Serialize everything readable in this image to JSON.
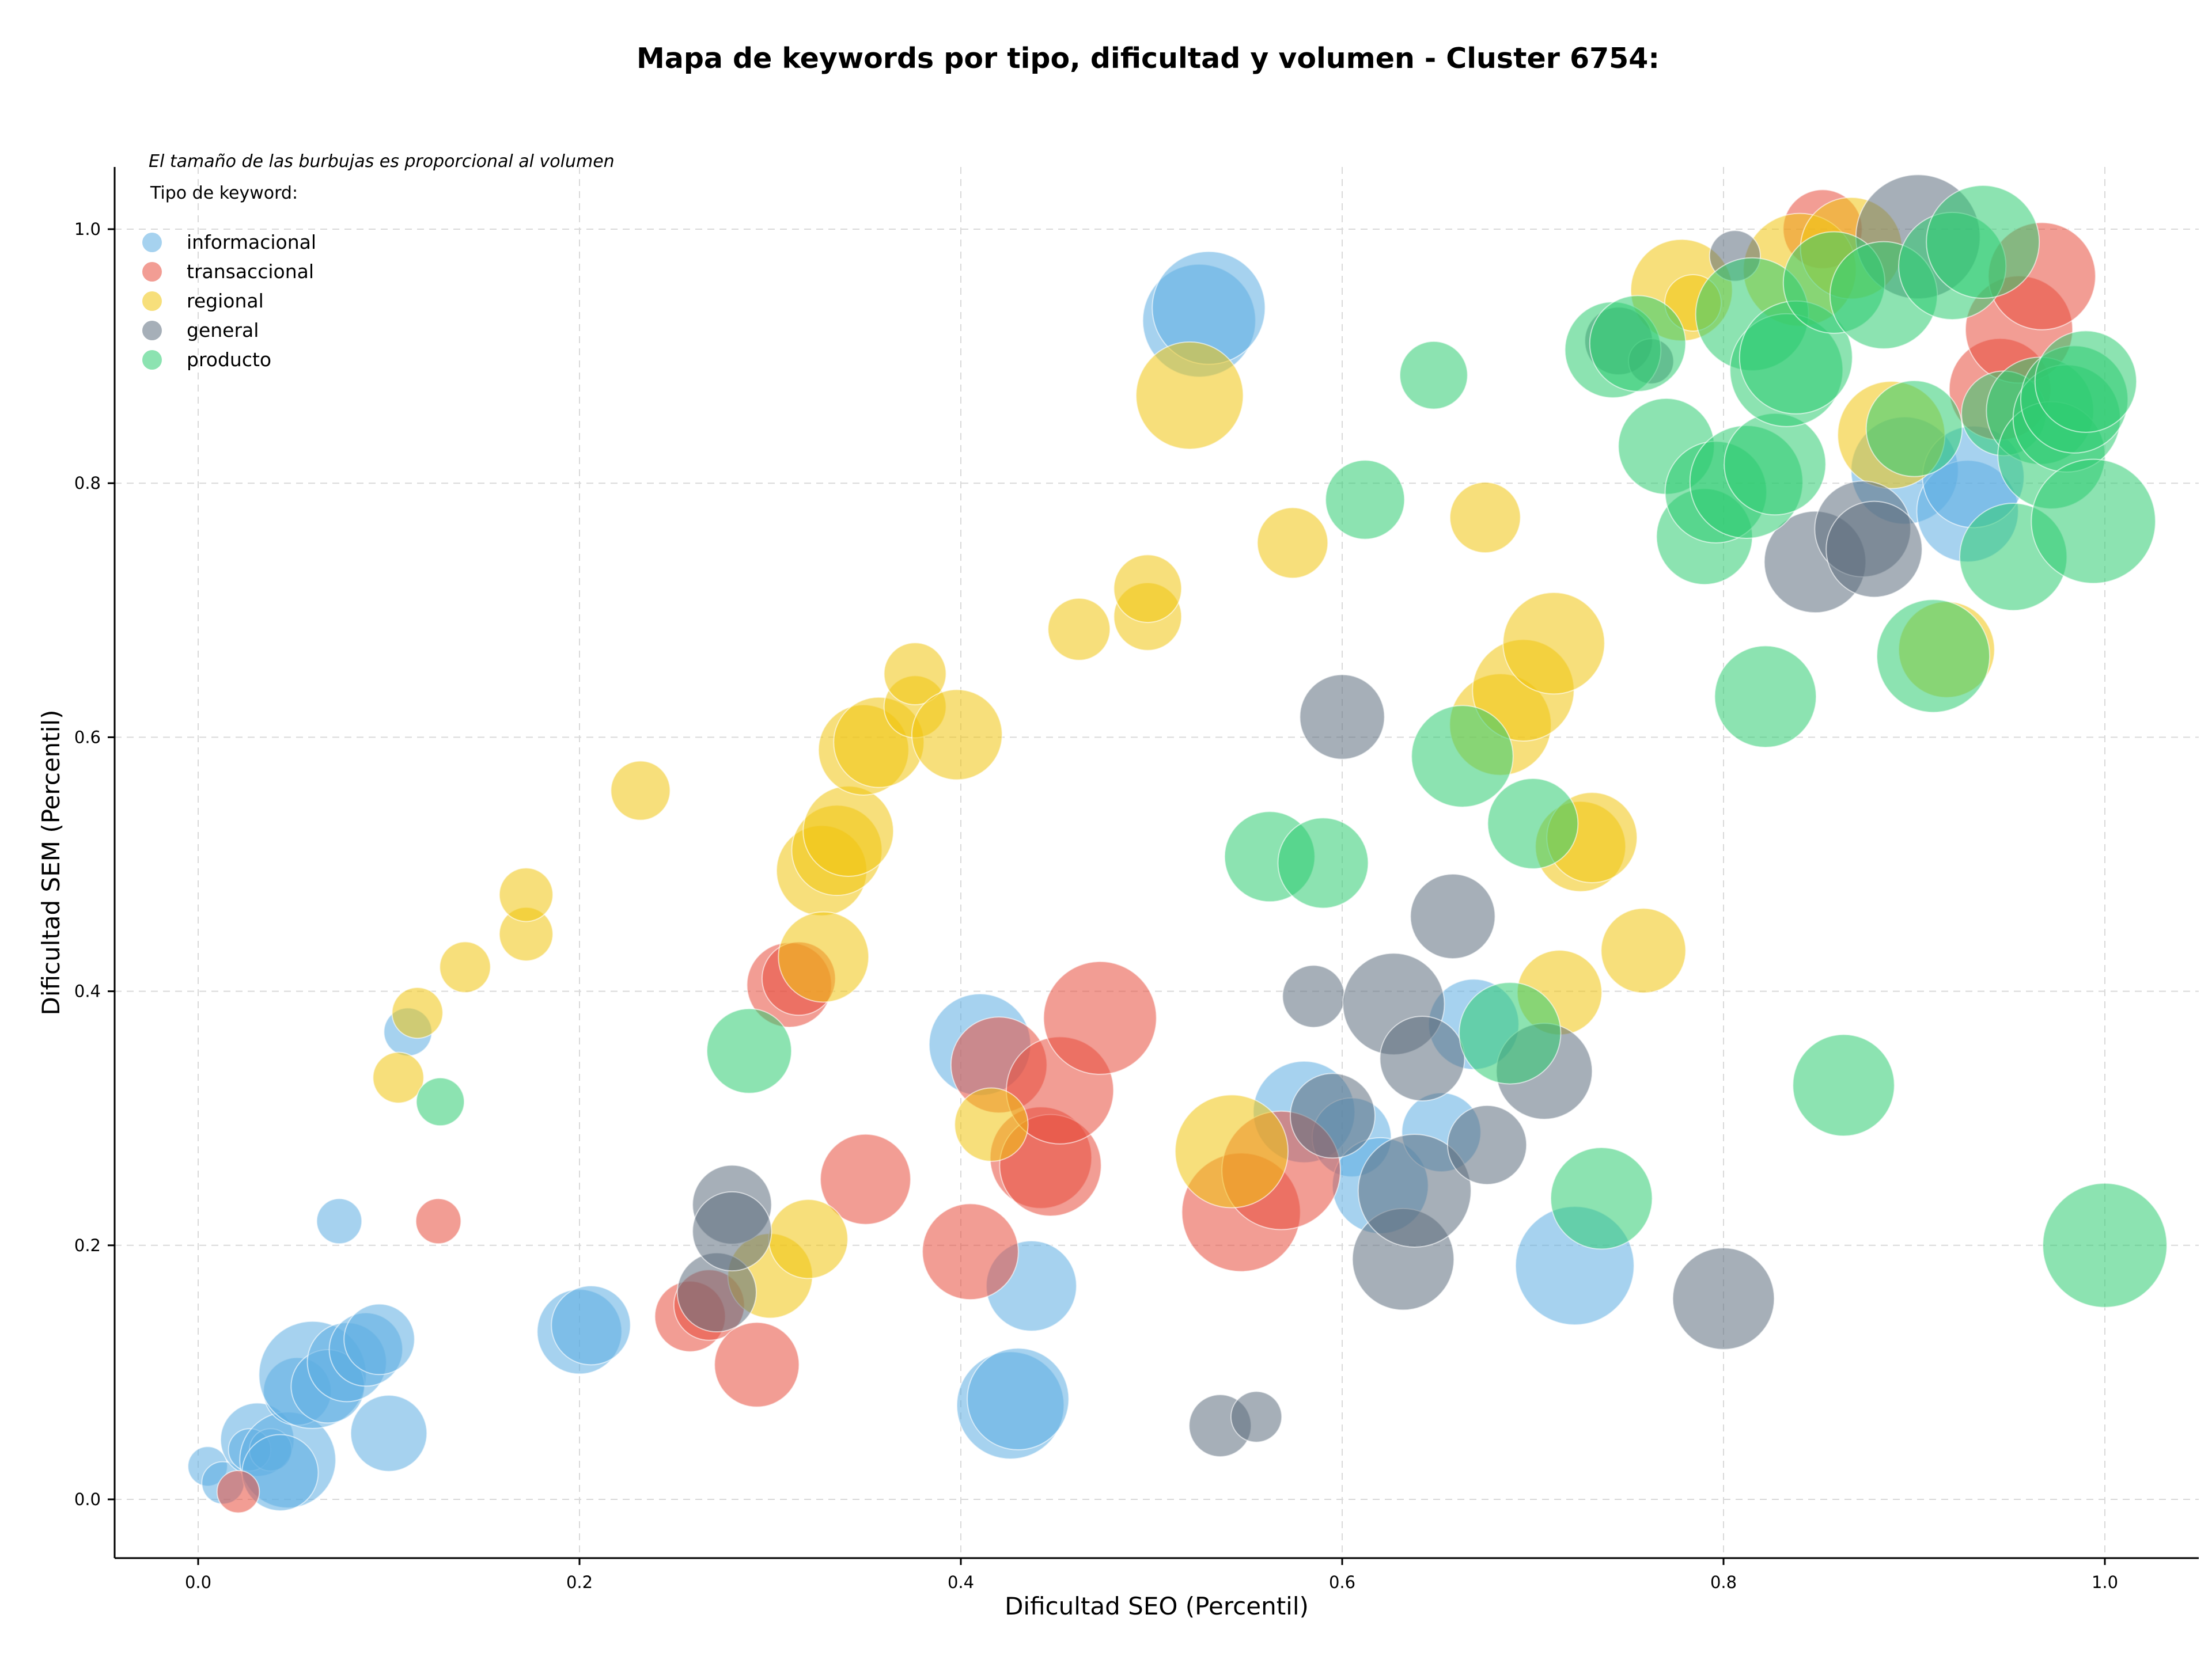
{
  "chart_data": {
    "type": "scatter",
    "title": "Mapa de keywords por tipo, dificultad y volumen - Cluster 6754:",
    "xlabel": "Dificultad SEO (Percentil)",
    "ylabel": "Dificultad SEM (Percentil)",
    "note": "El tamaño de las burbujas es proporcional al volumen",
    "legend_title": "Tipo de keyword:",
    "legend_position": "top-left",
    "xlim": [
      -0.045,
      1.05
    ],
    "ylim": [
      -0.045,
      1.05
    ],
    "x_ticks": [
      0.0,
      0.2,
      0.4,
      0.6,
      0.8,
      1.0
    ],
    "y_ticks": [
      0.0,
      0.2,
      0.4,
      0.6,
      0.8,
      1.0
    ],
    "x_tick_labels": [
      "0.0",
      "0.2",
      "0.4",
      "0.6",
      "0.8",
      "1.0"
    ],
    "y_tick_labels": [
      "0.0",
      "0.2",
      "0.4",
      "0.6",
      "0.8",
      "1.0"
    ],
    "grid": true,
    "series": [
      {
        "name": "informacional",
        "color": "#5dade2",
        "points": [
          [
            0.005,
            0.026,
            14
          ],
          [
            0.013,
            0.013,
            15
          ],
          [
            0.031,
            0.047,
            26
          ],
          [
            0.027,
            0.039,
            15
          ],
          [
            0.038,
            0.039,
            15
          ],
          [
            0.047,
            0.031,
            34
          ],
          [
            0.043,
            0.021,
            27
          ],
          [
            0.052,
            0.085,
            24
          ],
          [
            0.06,
            0.098,
            38
          ],
          [
            0.068,
            0.089,
            26
          ],
          [
            0.078,
            0.108,
            28
          ],
          [
            0.088,
            0.118,
            26
          ],
          [
            0.095,
            0.126,
            25
          ],
          [
            0.1,
            0.052,
            27
          ],
          [
            0.074,
            0.219,
            16
          ],
          [
            0.11,
            0.368,
            17
          ],
          [
            0.2,
            0.132,
            30
          ],
          [
            0.206,
            0.137,
            28
          ],
          [
            0.41,
            0.358,
            36
          ],
          [
            0.437,
            0.168,
            32
          ],
          [
            0.426,
            0.074,
            38
          ],
          [
            0.43,
            0.079,
            36
          ],
          [
            0.525,
            0.928,
            40
          ],
          [
            0.53,
            0.938,
            40
          ],
          [
            0.58,
            0.305,
            36
          ],
          [
            0.605,
            0.285,
            28
          ],
          [
            0.62,
            0.247,
            34
          ],
          [
            0.652,
            0.289,
            28
          ],
          [
            0.669,
            0.374,
            32
          ],
          [
            0.722,
            0.184,
            42
          ],
          [
            0.895,
            0.81,
            38
          ],
          [
            0.928,
            0.778,
            36
          ],
          [
            0.931,
            0.805,
            36
          ]
        ]
      },
      {
        "name": "transaccional",
        "color": "#e74c3c",
        "points": [
          [
            0.021,
            0.006,
            15
          ],
          [
            0.126,
            0.219,
            16
          ],
          [
            0.258,
            0.144,
            25
          ],
          [
            0.268,
            0.153,
            25
          ],
          [
            0.293,
            0.106,
            30
          ],
          [
            0.31,
            0.405,
            30
          ],
          [
            0.315,
            0.41,
            26
          ],
          [
            0.35,
            0.252,
            32
          ],
          [
            0.405,
            0.195,
            34
          ],
          [
            0.42,
            0.342,
            34
          ],
          [
            0.442,
            0.269,
            36
          ],
          [
            0.447,
            0.263,
            36
          ],
          [
            0.452,
            0.322,
            38
          ],
          [
            0.473,
            0.379,
            40
          ],
          [
            0.547,
            0.226,
            42
          ],
          [
            0.568,
            0.259,
            42
          ],
          [
            0.852,
            1.0,
            28
          ],
          [
            0.945,
            0.874,
            36
          ],
          [
            0.955,
            0.921,
            38
          ],
          [
            0.967,
            0.963,
            38
          ]
        ]
      },
      {
        "name": "regional",
        "color": "#f1c40f",
        "points": [
          [
            0.105,
            0.332,
            18
          ],
          [
            0.115,
            0.383,
            18
          ],
          [
            0.14,
            0.419,
            18
          ],
          [
            0.172,
            0.445,
            19
          ],
          [
            0.172,
            0.476,
            19
          ],
          [
            0.232,
            0.558,
            21
          ],
          [
            0.3,
            0.176,
            30
          ],
          [
            0.32,
            0.205,
            28
          ],
          [
            0.327,
            0.495,
            32
          ],
          [
            0.328,
            0.427,
            32
          ],
          [
            0.335,
            0.511,
            32
          ],
          [
            0.341,
            0.526,
            32
          ],
          [
            0.349,
            0.59,
            32
          ],
          [
            0.357,
            0.596,
            32
          ],
          [
            0.376,
            0.624,
            22
          ],
          [
            0.376,
            0.65,
            22
          ],
          [
            0.398,
            0.602,
            32
          ],
          [
            0.416,
            0.295,
            26
          ],
          [
            0.462,
            0.685,
            22
          ],
          [
            0.498,
            0.695,
            24
          ],
          [
            0.498,
            0.717,
            24
          ],
          [
            0.52,
            0.869,
            38
          ],
          [
            0.542,
            0.274,
            40
          ],
          [
            0.574,
            0.753,
            25
          ],
          [
            0.675,
            0.773,
            25
          ],
          [
            0.683,
            0.61,
            36
          ],
          [
            0.695,
            0.637,
            36
          ],
          [
            0.711,
            0.674,
            36
          ],
          [
            0.714,
            0.399,
            30
          ],
          [
            0.725,
            0.514,
            32
          ],
          [
            0.731,
            0.521,
            32
          ],
          [
            0.758,
            0.432,
            30
          ],
          [
            0.778,
            0.952,
            36
          ],
          [
            0.784,
            0.942,
            20
          ],
          [
            0.84,
            0.968,
            40
          ],
          [
            0.867,
            0.985,
            36
          ],
          [
            0.888,
            0.838,
            38
          ],
          [
            0.917,
            0.669,
            34
          ]
        ]
      },
      {
        "name": "general",
        "color": "#5d6d7e",
        "points": [
          [
            0.272,
            0.163,
            28
          ],
          [
            0.28,
            0.232,
            28
          ],
          [
            0.28,
            0.211,
            28
          ],
          [
            0.536,
            0.058,
            22
          ],
          [
            0.555,
            0.065,
            18
          ],
          [
            0.595,
            0.302,
            30
          ],
          [
            0.6,
            0.616,
            30
          ],
          [
            0.585,
            0.396,
            22
          ],
          [
            0.627,
            0.39,
            36
          ],
          [
            0.632,
            0.189,
            36
          ],
          [
            0.638,
            0.243,
            40
          ],
          [
            0.642,
            0.347,
            30
          ],
          [
            0.658,
            0.459,
            30
          ],
          [
            0.676,
            0.279,
            28
          ],
          [
            0.706,
            0.337,
            34
          ],
          [
            0.745,
            0.912,
            24
          ],
          [
            0.762,
            0.896,
            16
          ],
          [
            0.806,
            0.979,
            18
          ],
          [
            0.8,
            0.158,
            36
          ],
          [
            0.848,
            0.738,
            36
          ],
          [
            0.873,
            0.764,
            34
          ],
          [
            0.879,
            0.748,
            34
          ],
          [
            0.902,
            0.994,
            44
          ]
        ]
      },
      {
        "name": "producto",
        "color": "#2ecc71",
        "points": [
          [
            0.127,
            0.313,
            17
          ],
          [
            0.289,
            0.353,
            30
          ],
          [
            0.562,
            0.506,
            32
          ],
          [
            0.59,
            0.501,
            32
          ],
          [
            0.612,
            0.787,
            28
          ],
          [
            0.648,
            0.885,
            24
          ],
          [
            0.663,
            0.585,
            36
          ],
          [
            0.688,
            0.367,
            36
          ],
          [
            0.7,
            0.532,
            32
          ],
          [
            0.736,
            0.237,
            36
          ],
          [
            0.742,
            0.905,
            34
          ],
          [
            0.755,
            0.91,
            34
          ],
          [
            0.77,
            0.829,
            34
          ],
          [
            0.79,
            0.758,
            34
          ],
          [
            0.796,
            0.793,
            36
          ],
          [
            0.812,
            0.801,
            40
          ],
          [
            0.815,
            0.933,
            40
          ],
          [
            0.827,
            0.815,
            36
          ],
          [
            0.833,
            0.889,
            40
          ],
          [
            0.838,
            0.899,
            40
          ],
          [
            0.822,
            0.632,
            36
          ],
          [
            0.858,
            0.958,
            36
          ],
          [
            0.863,
            0.326,
            36
          ],
          [
            0.884,
            0.948,
            38
          ],
          [
            0.9,
            0.843,
            34
          ],
          [
            0.91,
            0.664,
            40
          ],
          [
            0.92,
            0.971,
            38
          ],
          [
            0.936,
            0.99,
            40
          ],
          [
            0.947,
            0.855,
            30
          ],
          [
            0.952,
            0.742,
            38
          ],
          [
            0.966,
            0.857,
            38
          ],
          [
            0.972,
            0.822,
            38
          ],
          [
            0.98,
            0.851,
            38
          ],
          [
            0.984,
            0.866,
            38
          ],
          [
            0.99,
            0.88,
            36
          ],
          [
            0.994,
            0.77,
            44
          ],
          [
            1.0,
            0.2,
            44
          ]
        ]
      }
    ]
  }
}
